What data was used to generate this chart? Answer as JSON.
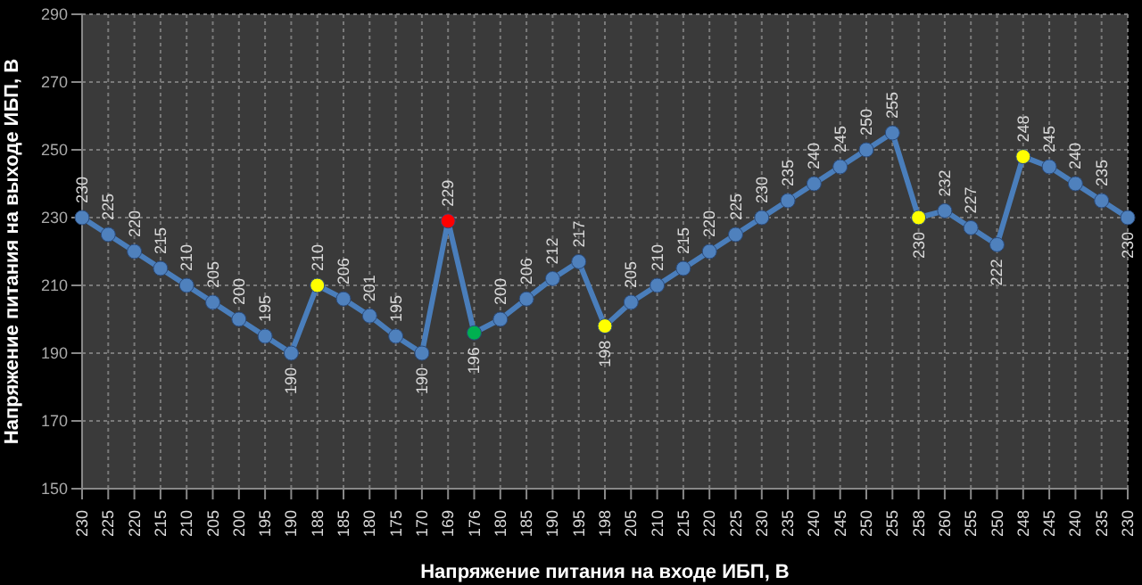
{
  "chart_data": {
    "type": "line",
    "xlabel": "Напряжение питания на входе ИБП, В",
    "ylabel": "Напряжение питания на выходе ИБП, В",
    "categories": [
      "230",
      "225",
      "220",
      "215",
      "210",
      "205",
      "200",
      "195",
      "190",
      "188",
      "185",
      "180",
      "175",
      "170",
      "169",
      "176",
      "180",
      "185",
      "190",
      "195",
      "198",
      "205",
      "210",
      "215",
      "220",
      "225",
      "230",
      "235",
      "240",
      "245",
      "250",
      "255",
      "258",
      "260",
      "255",
      "250",
      "248",
      "245",
      "240",
      "235",
      "230"
    ],
    "series": [
      {
        "color": "#4a7ebb",
        "values": [
          230,
          225,
          220,
          215,
          210,
          205,
          200,
          195,
          190,
          210,
          206,
          201,
          195,
          190,
          229,
          196,
          200,
          206,
          212,
          217,
          198,
          205,
          210,
          215,
          220,
          225,
          230,
          235,
          240,
          245,
          250,
          255,
          230,
          232,
          227,
          222,
          248,
          245,
          240,
          235,
          230
        ],
        "colors": [
          "#4f81bd",
          "#4f81bd",
          "#4f81bd",
          "#4f81bd",
          "#4f81bd",
          "#4f81bd",
          "#4f81bd",
          "#4f81bd",
          "#4f81bd",
          "#ffff00",
          "#4f81bd",
          "#4f81bd",
          "#4f81bd",
          "#4f81bd",
          "#ff0000",
          "#00b050",
          "#4f81bd",
          "#4f81bd",
          "#4f81bd",
          "#4f81bd",
          "#ffff00",
          "#4f81bd",
          "#4f81bd",
          "#4f81bd",
          "#4f81bd",
          "#4f81bd",
          "#4f81bd",
          "#4f81bd",
          "#4f81bd",
          "#4f81bd",
          "#4f81bd",
          "#4f81bd",
          "#ffff00",
          "#4f81bd",
          "#4f81bd",
          "#4f81bd",
          "#ffff00",
          "#4f81bd",
          "#4f81bd",
          "#4f81bd",
          "#4f81bd"
        ]
      }
    ],
    "ylim": [
      150,
      290
    ],
    "yticks": [
      150,
      170,
      190,
      210,
      230,
      250,
      270,
      290
    ],
    "grid": true,
    "marker": "circle",
    "line_style": "solid",
    "data_labels": true
  }
}
